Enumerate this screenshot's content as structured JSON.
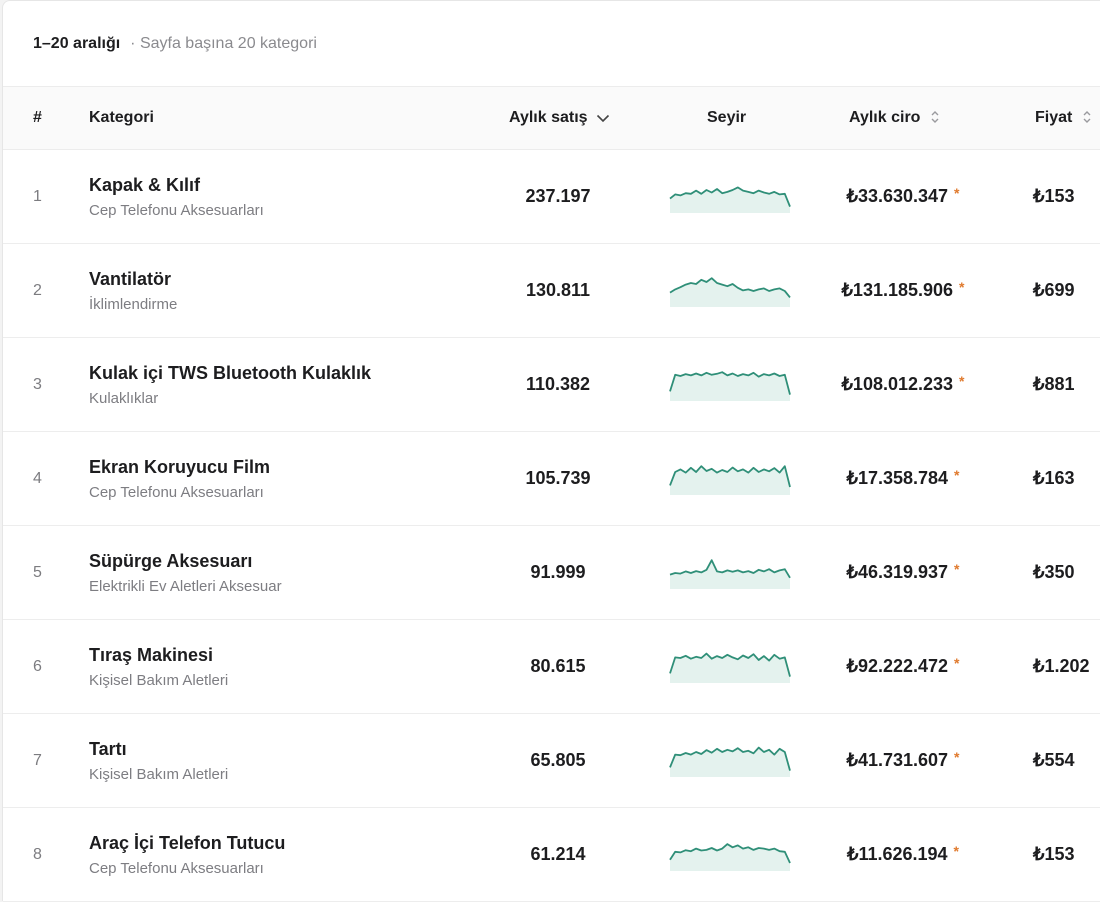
{
  "range": {
    "label": "1–20 aralığı",
    "per_page": "· Sayfa başına 20 kategori"
  },
  "columns": {
    "index": "#",
    "category": "Kategori",
    "monthly_sales": "Aylık satış",
    "trend": "Seyir",
    "monthly_revenue": "Aylık ciro",
    "price": "Fiyat"
  },
  "colors": {
    "spark_line": "#2f8f78",
    "spark_fill": "#e4f2ee",
    "revenue_marker": "#e07a2e"
  },
  "rows": [
    {
      "index": "1",
      "name": "Kapak & Kılıf",
      "subcategory": "Cep Telefonu Aksesuarları",
      "sales": "237.197",
      "revenue": "₺33.630.347",
      "marker": "*",
      "price": "₺153",
      "trend": [
        0.45,
        0.58,
        0.55,
        0.62,
        0.6,
        0.7,
        0.6,
        0.72,
        0.64,
        0.75,
        0.62,
        0.66,
        0.72,
        0.8,
        0.7,
        0.66,
        0.62,
        0.7,
        0.64,
        0.6,
        0.66,
        0.58,
        0.6,
        0.2
      ]
    },
    {
      "index": "2",
      "name": "Vantilatör",
      "subcategory": "İklimlendirme",
      "sales": "130.811",
      "revenue": "₺131.185.906",
      "marker": "*",
      "price": "₺699",
      "trend": [
        0.45,
        0.55,
        0.62,
        0.7,
        0.75,
        0.72,
        0.85,
        0.78,
        0.9,
        0.75,
        0.7,
        0.65,
        0.72,
        0.6,
        0.52,
        0.55,
        0.5,
        0.55,
        0.58,
        0.5,
        0.55,
        0.58,
        0.5,
        0.3
      ]
    },
    {
      "index": "3",
      "name": "Kulak içi TWS Bluetooth Kulaklık",
      "subcategory": "Kulaklıklar",
      "sales": "110.382",
      "revenue": "₺108.012.233",
      "marker": "*",
      "price": "₺881",
      "trend": [
        0.3,
        0.82,
        0.78,
        0.84,
        0.8,
        0.86,
        0.8,
        0.88,
        0.82,
        0.85,
        0.9,
        0.8,
        0.86,
        0.78,
        0.84,
        0.8,
        0.88,
        0.76,
        0.84,
        0.8,
        0.86,
        0.78,
        0.82,
        0.2
      ]
    },
    {
      "index": "4",
      "name": "Ekran Koruyucu Film",
      "subcategory": "Cep Telefonu Aksesuarları",
      "sales": "105.739",
      "revenue": "₺17.358.784",
      "marker": "*",
      "price": "₺163",
      "trend": [
        0.3,
        0.72,
        0.8,
        0.7,
        0.85,
        0.72,
        0.9,
        0.75,
        0.82,
        0.7,
        0.78,
        0.72,
        0.86,
        0.74,
        0.8,
        0.7,
        0.85,
        0.72,
        0.8,
        0.74,
        0.84,
        0.7,
        0.9,
        0.25
      ]
    },
    {
      "index": "5",
      "name": "Süpürge Aksesuarı",
      "subcategory": "Elektrikli Ev Aletleri Aksesuar",
      "sales": "91.999",
      "revenue": "₺46.319.937",
      "marker": "*",
      "price": "₺350",
      "trend": [
        0.45,
        0.5,
        0.48,
        0.55,
        0.5,
        0.56,
        0.52,
        0.6,
        0.9,
        0.55,
        0.52,
        0.58,
        0.54,
        0.58,
        0.52,
        0.56,
        0.5,
        0.6,
        0.55,
        0.62,
        0.52,
        0.58,
        0.62,
        0.35
      ]
    },
    {
      "index": "6",
      "name": "Tıraş Makinesi",
      "subcategory": "Kişisel Bakım Aletleri",
      "sales": "80.615",
      "revenue": "₺92.222.472",
      "marker": "*",
      "price": "₺1.202",
      "trend": [
        0.3,
        0.8,
        0.78,
        0.85,
        0.76,
        0.82,
        0.78,
        0.92,
        0.76,
        0.84,
        0.78,
        0.88,
        0.8,
        0.74,
        0.86,
        0.78,
        0.9,
        0.72,
        0.84,
        0.7,
        0.88,
        0.76,
        0.8,
        0.2
      ]
    },
    {
      "index": "7",
      "name": "Tartı",
      "subcategory": "Kişisel Bakım Aletleri",
      "sales": "65.805",
      "revenue": "₺41.731.607",
      "marker": "*",
      "price": "₺554",
      "trend": [
        0.3,
        0.7,
        0.68,
        0.75,
        0.7,
        0.78,
        0.72,
        0.84,
        0.76,
        0.88,
        0.78,
        0.85,
        0.8,
        0.9,
        0.78,
        0.82,
        0.74,
        0.92,
        0.78,
        0.85,
        0.7,
        0.88,
        0.78,
        0.2
      ]
    },
    {
      "index": "8",
      "name": "Araç İçi Telefon Tutucu",
      "subcategory": "Cep Telefonu Aksesuarları",
      "sales": "61.214",
      "revenue": "₺11.626.194",
      "marker": "*",
      "price": "₺153",
      "trend": [
        0.35,
        0.6,
        0.58,
        0.65,
        0.62,
        0.7,
        0.64,
        0.66,
        0.72,
        0.64,
        0.7,
        0.84,
        0.74,
        0.8,
        0.7,
        0.74,
        0.66,
        0.72,
        0.7,
        0.66,
        0.7,
        0.62,
        0.6,
        0.25
      ]
    }
  ]
}
